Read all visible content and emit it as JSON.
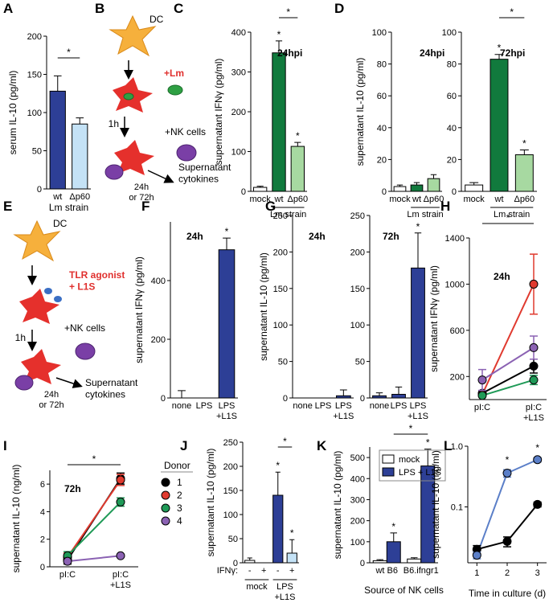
{
  "panel_labels": [
    "A",
    "B",
    "C",
    "D",
    "E",
    "F",
    "G",
    "H",
    "I",
    "J",
    "K",
    "L"
  ],
  "diagrams": [
    {
      "labels": [
        "DC",
        "+Lm",
        "1h",
        "+NK cells",
        "24h\nor 72h",
        "Supernatant\ncytokines"
      ]
    },
    {
      "labels": [
        "DC",
        "TLR agonist\n+ L1S",
        "1h",
        "+NK cells",
        "24h\nor 72h",
        "Supernatant\ncytokines"
      ]
    }
  ],
  "chart_data": [
    {
      "type": "bar",
      "y_label": "serum IL-10 (pg/ml)",
      "x_label": "Lm strain",
      "categories": [
        "wt",
        "Δp60"
      ],
      "values": [
        128,
        85
      ],
      "errors": [
        20,
        8
      ],
      "colors": [
        "#2d3f96",
        "#c4e2f6"
      ],
      "ylim": [
        0,
        200
      ],
      "yticks": [
        0,
        50,
        100,
        150,
        200
      ],
      "significance": [
        "*"
      ]
    },
    {
      "type": "bar",
      "y_label": "supernatant IFNγ (pg/ml)",
      "annotation": "24hpi",
      "group_label": "Lm strain",
      "categories": [
        "mock",
        "wt",
        "Δp60"
      ],
      "values": [
        10,
        348,
        113
      ],
      "errors": [
        3,
        30,
        10
      ],
      "colors": [
        "#ffffff",
        "#117a3d",
        "#a7d9a1"
      ],
      "ylim": [
        0,
        400
      ],
      "yticks": [
        0,
        100,
        200,
        300,
        400
      ],
      "significance": [
        "*",
        "*",
        "*"
      ]
    },
    {
      "type": "bar",
      "y_label": "supernatant IL-10 (pg/ml)",
      "annotation": "24hpi",
      "group_label": "Lm strain",
      "categories": [
        "mock",
        "wt",
        "Δp60"
      ],
      "values": [
        3,
        4,
        8
      ],
      "errors": [
        1,
        1.5,
        2.5
      ],
      "colors": [
        "#ffffff",
        "#117a3d",
        "#a7d9a1"
      ],
      "ylim": [
        0,
        100
      ],
      "yticks": [
        0,
        20,
        40,
        60,
        80,
        100
      ]
    },
    {
      "type": "bar",
      "annotation": "72hpi",
      "group_label": "Lm strain",
      "categories": [
        "mock",
        "wt",
        "Δp60"
      ],
      "values": [
        4,
        83,
        23
      ],
      "errors": [
        1.5,
        3,
        3
      ],
      "colors": [
        "#ffffff",
        "#117a3d",
        "#a7d9a1"
      ],
      "ylim": [
        0,
        100
      ],
      "yticks": [
        0,
        20,
        40,
        60,
        80,
        100
      ],
      "significance": [
        "*",
        "*",
        "*"
      ]
    },
    {
      "type": "bar",
      "y_label": "supernatant IFNγ (pg/ml)",
      "annotation": "24h",
      "categories": [
        "none",
        "LPS",
        "LPS\n+L1S"
      ],
      "values": [
        0,
        0,
        505
      ],
      "errors": [
        25,
        0,
        40
      ],
      "color": "#2d3f96",
      "ylim": [
        0,
        600
      ],
      "yticks": [
        0,
        200,
        400
      ],
      "significance": [
        "*"
      ]
    },
    {
      "type": "bar",
      "y_label": "supernatant IL-10 (pg/ml)",
      "annotation": "24h",
      "categories": [
        "none",
        "LPS",
        "LPS\n+L1S"
      ],
      "values": [
        0,
        0,
        3
      ],
      "errors": [
        0,
        0,
        8
      ],
      "color": "#2d3f96",
      "ylim": [
        0,
        250
      ],
      "yticks": [
        0,
        50,
        100,
        150,
        200,
        250
      ]
    },
    {
      "type": "bar",
      "annotation": "72h",
      "categories": [
        "none",
        "LPS",
        "LPS\n+L1S"
      ],
      "values": [
        3,
        5,
        178
      ],
      "errors": [
        4,
        10,
        48
      ],
      "color": "#2d3f96",
      "ylim": [
        0,
        250
      ],
      "yticks": [
        0,
        50,
        100,
        150,
        200,
        250
      ],
      "significance": [
        "*"
      ]
    },
    {
      "type": "line",
      "y_label": "supernatant IFNγ (pg/ml)",
      "annotation": "24h",
      "categories": [
        "pI:C",
        "pI:C\n+L1S"
      ],
      "series": [
        {
          "color": "#000000",
          "values": [
            55,
            290
          ],
          "errors": [
            15,
            60
          ]
        },
        {
          "color": "#e03a2f",
          "values": [
            45,
            1000
          ],
          "errors": [
            15,
            260
          ]
        },
        {
          "color": "#1f9a57",
          "values": [
            35,
            170
          ],
          "errors": [
            10,
            40
          ]
        },
        {
          "color": "#8b62b3",
          "values": [
            170,
            450
          ],
          "errors": [
            90,
            100
          ]
        }
      ],
      "ylim": [
        0,
        1400
      ],
      "yticks": [
        200,
        600,
        1000,
        1400
      ],
      "significance": [
        "*"
      ]
    },
    {
      "type": "line",
      "y_label": "supernatant IL-10 (ng/ml)",
      "annotation": "72h",
      "legend_title": "Donor",
      "categories": [
        "pI:C",
        "pI:C\n+L1S"
      ],
      "series": [
        {
          "name": "1",
          "color": "#000000",
          "values": [
            0.5,
            6.4
          ],
          "errors": [
            0.3,
            0.4
          ]
        },
        {
          "name": "2",
          "color": "#e03a2f",
          "values": [
            0.7,
            6.3
          ],
          "errors": [
            0.3,
            0.4
          ]
        },
        {
          "name": "3",
          "color": "#1f9a57",
          "values": [
            0.8,
            4.7
          ],
          "errors": [
            0.3,
            0.3
          ]
        },
        {
          "name": "4",
          "color": "#8b62b3",
          "values": [
            0.4,
            0.8
          ],
          "errors": [
            0.1,
            0.1
          ]
        }
      ],
      "ylim": [
        0,
        7
      ],
      "yticks": [
        0,
        2,
        4,
        6
      ],
      "significance": [
        "*"
      ]
    },
    {
      "type": "bar",
      "y_label": "supernatant IL-10 (pg/ml)",
      "row_label": "IFNγ:",
      "categories": [
        "-",
        "+",
        "-",
        "+"
      ],
      "group_labels": [
        "mock",
        "LPS\n+L1S"
      ],
      "values": [
        5,
        0,
        140,
        20
      ],
      "errors": [
        5,
        0,
        48,
        28
      ],
      "colors": [
        "#ffffff",
        "#ffffff",
        "#2d3f96",
        "#c4e2f6"
      ],
      "ylim": [
        0,
        250
      ],
      "yticks": [
        0,
        50,
        100,
        150,
        200,
        250
      ],
      "significance": [
        "*",
        "*",
        "*"
      ]
    },
    {
      "type": "bar",
      "y_label": "supernatant IL-10 (pg/ml)",
      "x_label": "Source of NK cells",
      "categories": [
        "wt B6",
        "B6.ifngr1"
      ],
      "series": [
        {
          "name": "mock",
          "color": "#ffffff",
          "values": [
            10,
            18
          ],
          "errors": [
            5,
            6
          ]
        },
        {
          "name": "LPS + L1S",
          "color": "#2d3f96",
          "values": [
            100,
            460
          ],
          "errors": [
            42,
            80
          ]
        }
      ],
      "ylim": [
        0,
        550
      ],
      "yticks": [
        0,
        100,
        200,
        300,
        400,
        500
      ],
      "significance": [
        "*",
        "*",
        "*"
      ]
    },
    {
      "type": "line",
      "y_label": "supernatant IL-10 (ng/ml)",
      "x_label": "Time in culture (d)",
      "log_y": true,
      "x": [
        1,
        2,
        3
      ],
      "xlim": [
        0.7,
        3.3
      ],
      "xticks": [
        1,
        2,
        3
      ],
      "series": [
        {
          "color": "#000000",
          "values": [
            0.02,
            0.027,
            0.11
          ],
          "errors": [
            0.003,
            0.005,
            0.01
          ]
        },
        {
          "color": "#5b7fc8",
          "values": [
            0.016,
            0.36,
            0.6
          ],
          "errors": [
            0.002,
            0.05,
            0.05
          ]
        }
      ],
      "ylim": [
        0.012,
        1
      ],
      "yticks": [
        0.1,
        {
          "value": 1,
          "label": "1.0"
        }
      ],
      "significance": [
        "*",
        "*"
      ]
    }
  ]
}
